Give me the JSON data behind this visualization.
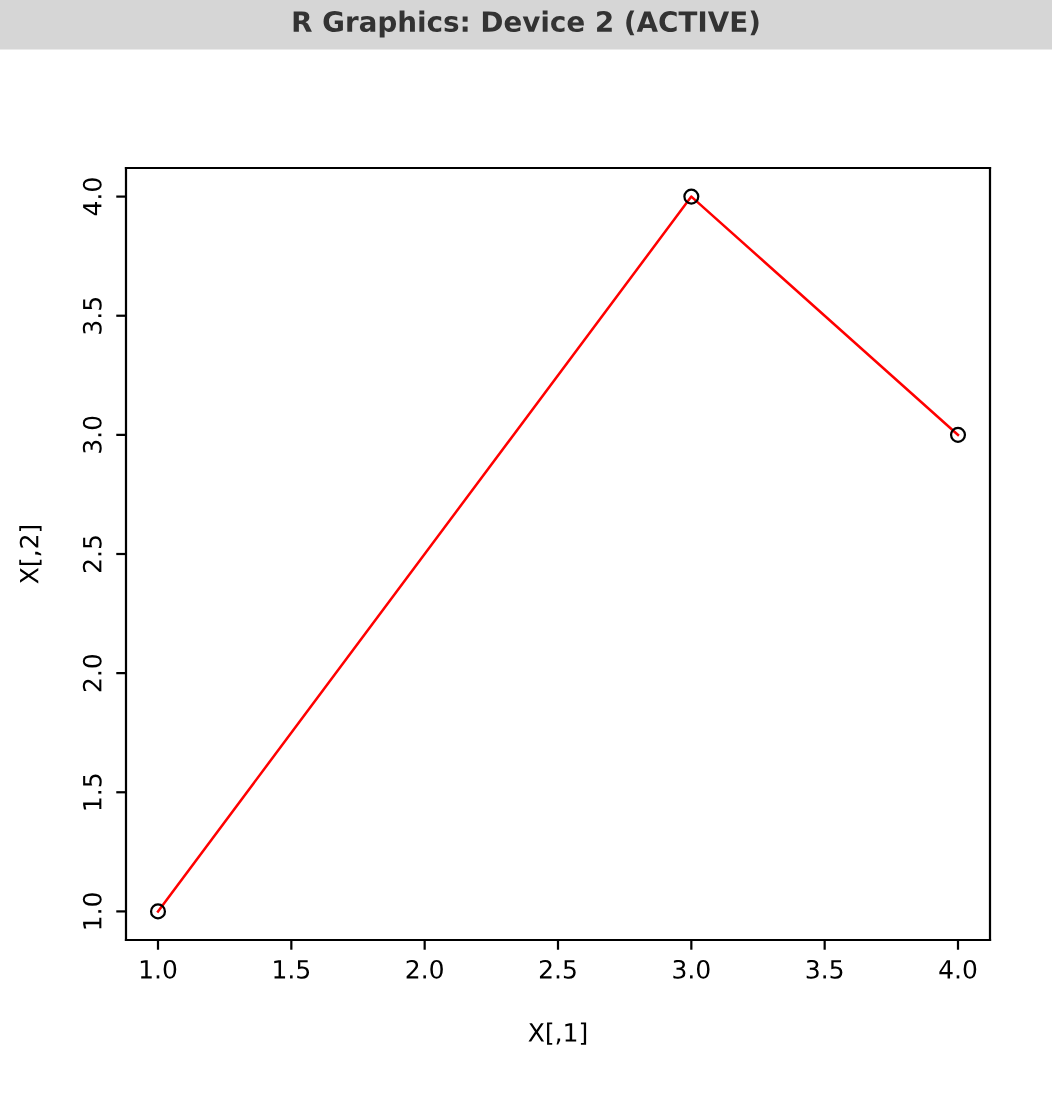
{
  "chart_data": {
    "type": "line",
    "title": "R Graphics: Device 2 (ACTIVE)",
    "xlabel": "X[,1]",
    "ylabel": "X[,2]",
    "x": [
      1,
      3,
      4
    ],
    "series": [
      {
        "color": "#ff0000",
        "values": [
          1,
          4,
          3
        ]
      }
    ],
    "marker": "circle",
    "line_style": "solid",
    "grid": false,
    "xlim": [
      0.88,
      4.12
    ],
    "ylim": [
      0.88,
      4.12
    ],
    "xticks": [
      {
        "value": 1,
        "label": "1.0"
      },
      {
        "value": 1.5,
        "label": "1.5"
      },
      {
        "value": 2,
        "label": "2.0"
      },
      {
        "value": 2.5,
        "label": "2.5"
      },
      {
        "value": 3,
        "label": "3.0"
      },
      {
        "value": 3.5,
        "label": "3.5"
      },
      {
        "value": 4,
        "label": "4.0"
      }
    ],
    "yticks": [
      {
        "value": 1,
        "label": "1.0"
      },
      {
        "value": 1.5,
        "label": "1.5"
      },
      {
        "value": 2,
        "label": "2.0"
      },
      {
        "value": 2.5,
        "label": "2.5"
      },
      {
        "value": 3,
        "label": "3.0"
      },
      {
        "value": 3.5,
        "label": "3.5"
      },
      {
        "value": 4,
        "label": "4.0"
      }
    ]
  }
}
